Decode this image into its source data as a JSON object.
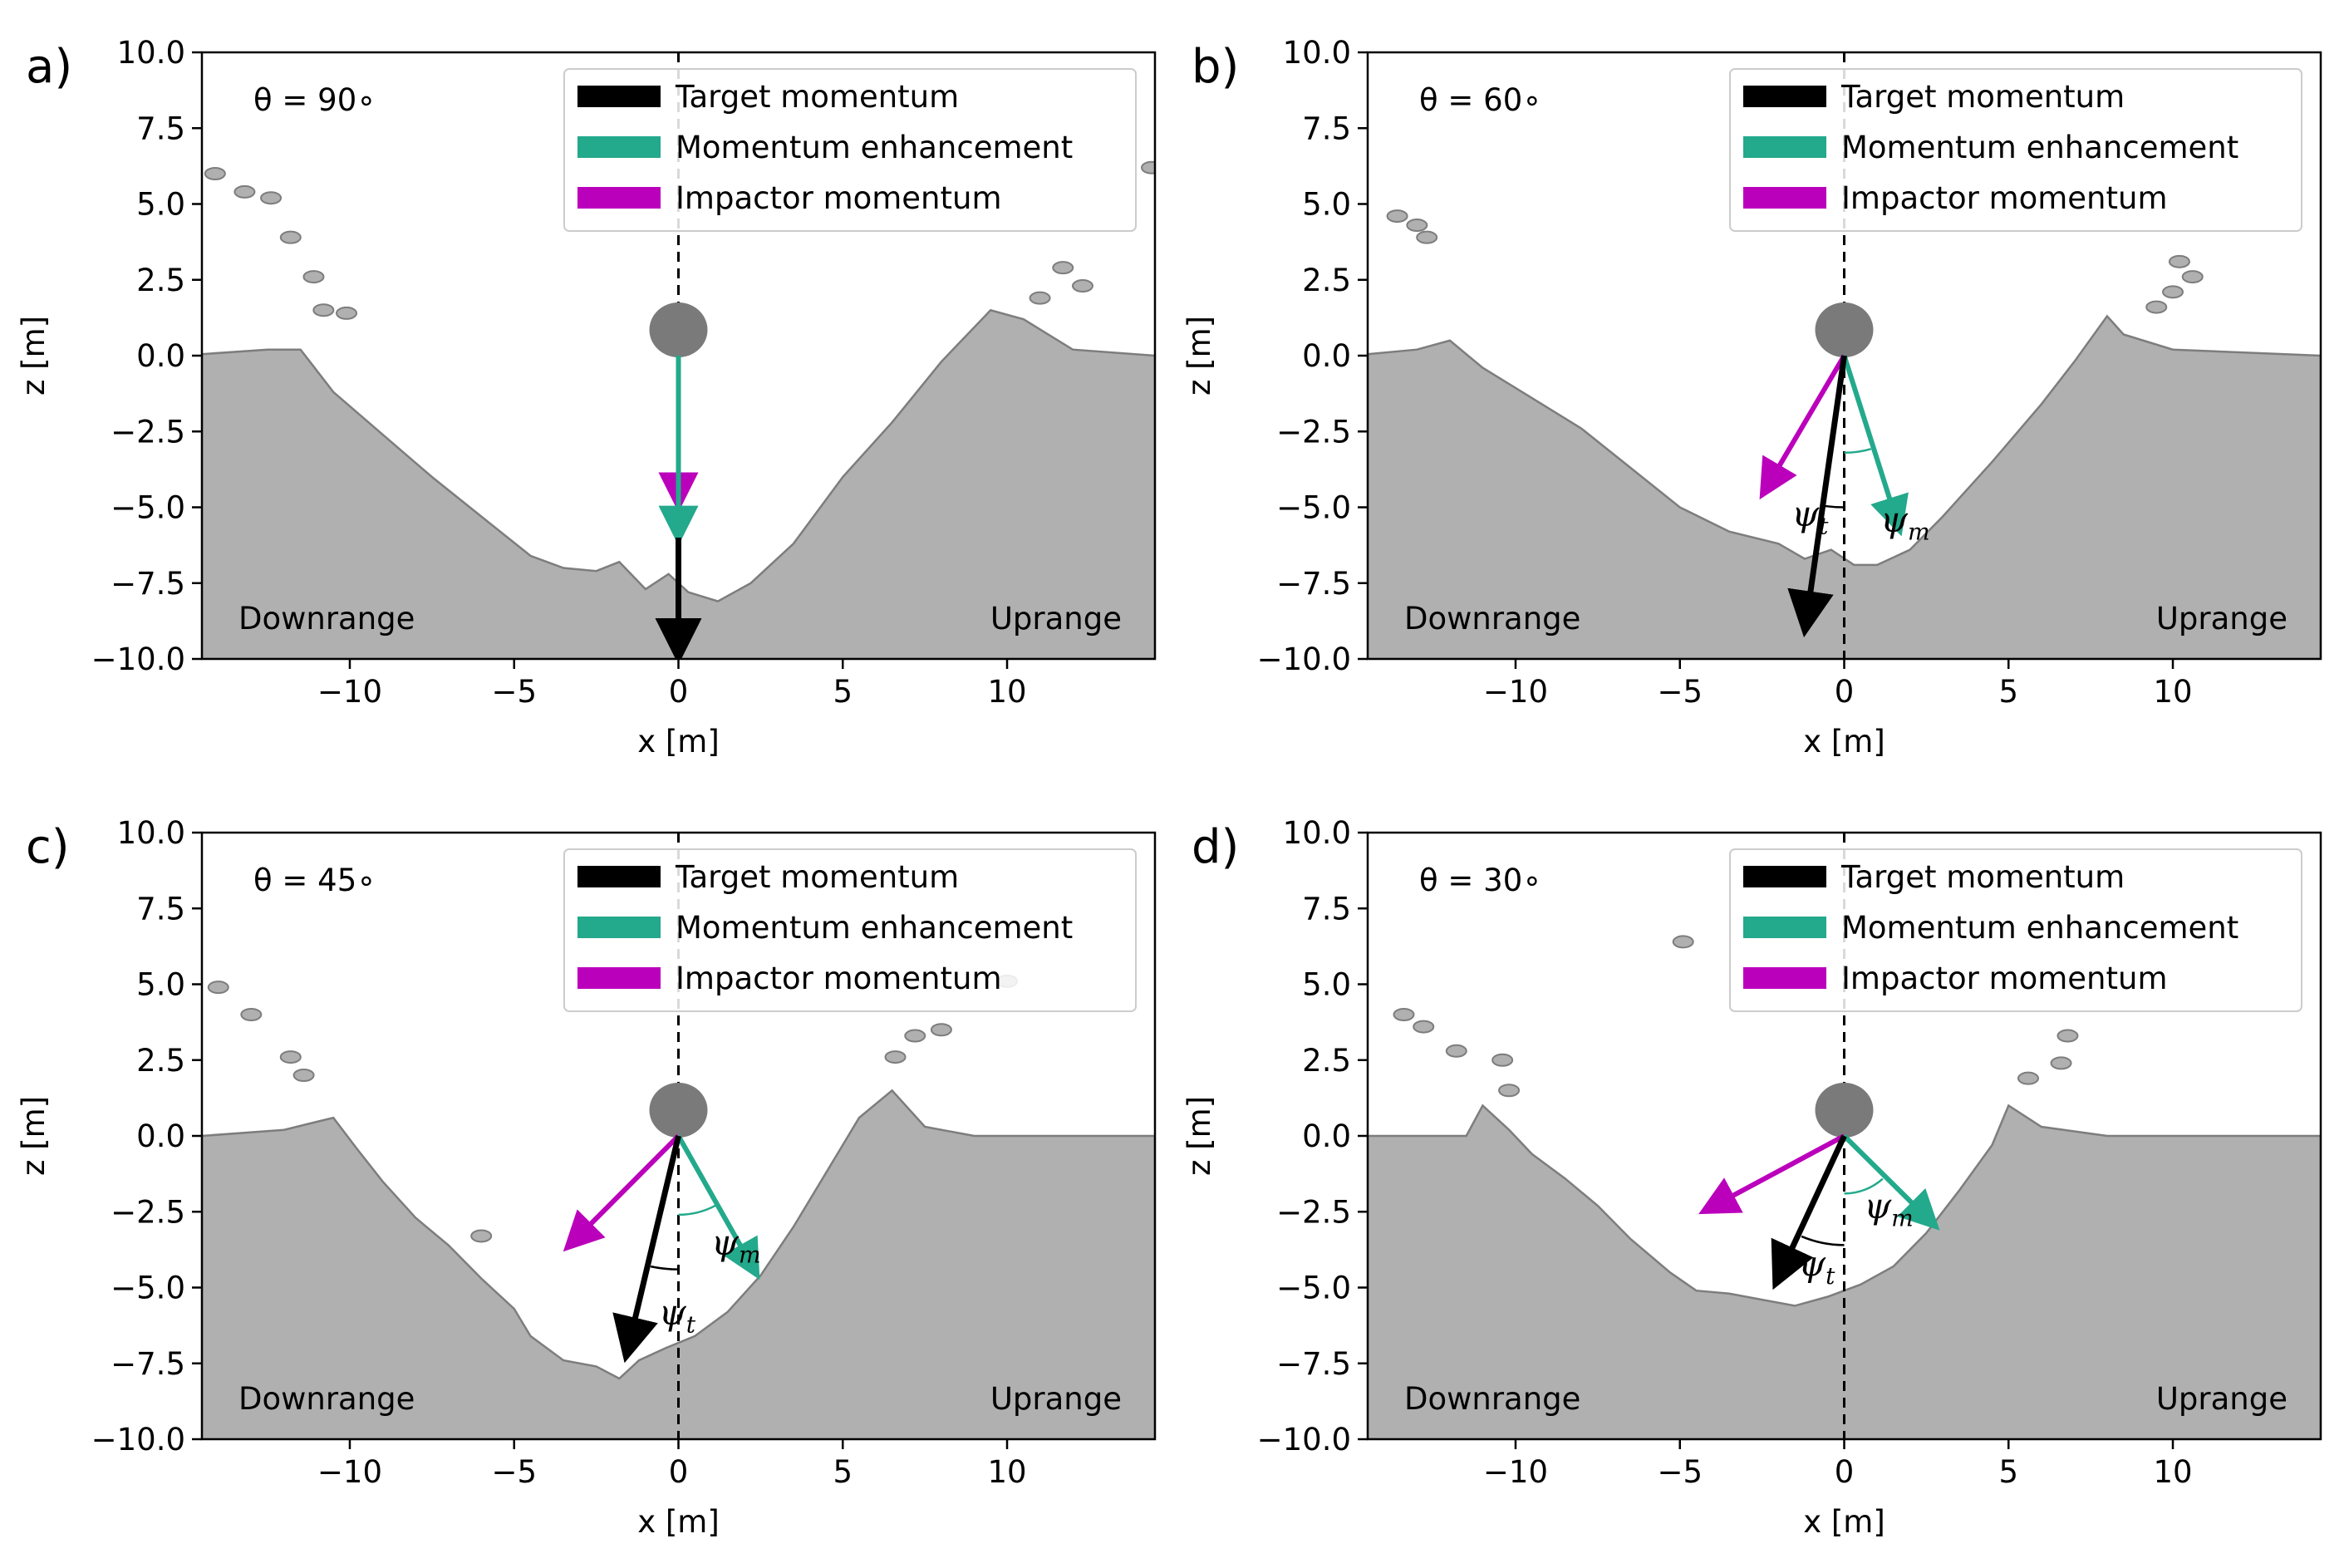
{
  "figure": {
    "background": "#ffffff"
  },
  "colors": {
    "target": "#000000",
    "enhancement": "#23a98b",
    "impactor": "#bb00bb",
    "terrain_fill": "#b0b0b0",
    "terrain_edge": "#7d7d7d",
    "impactor_ball": "#7a7a7a"
  },
  "chart_data": [
    {
      "panel_label": "a)",
      "type": "line",
      "title": "",
      "angle_label": "θ = 90∘",
      "angle_deg": 90,
      "xlabel": "x [m]",
      "ylabel": "z [m]",
      "xlim": [
        -14.5,
        14.5
      ],
      "ylim": [
        -10,
        10
      ],
      "xticks": [
        {
          "v": -10,
          "label": "−10"
        },
        {
          "v": -5,
          "label": "−5"
        },
        {
          "v": 0,
          "label": "0"
        },
        {
          "v": 5,
          "label": "5"
        },
        {
          "v": 10,
          "label": "10"
        }
      ],
      "yticks": [
        {
          "v": 10,
          "label": "10.0"
        },
        {
          "v": 7.5,
          "label": "7.5"
        },
        {
          "v": 5,
          "label": "5.0"
        },
        {
          "v": 2.5,
          "label": "2.5"
        },
        {
          "v": 0,
          "label": "0.0"
        },
        {
          "v": -2.5,
          "label": "−2.5"
        },
        {
          "v": -5,
          "label": "−5.0"
        },
        {
          "v": -7.5,
          "label": "−7.5"
        },
        {
          "v": -10,
          "label": "−10.0"
        }
      ],
      "legend": [
        "Target momentum",
        "Momentum enhancement",
        "Impactor momentum"
      ],
      "legend_position": "top-right",
      "downrange_label": "Downrange",
      "uprange_label": "Uprange",
      "impactor_center": [
        0,
        0.85
      ],
      "vectors": {
        "impactor": [
          [
            0,
            0
          ],
          [
            0,
            -5.0
          ]
        ],
        "enhancement": [
          [
            0,
            0
          ],
          [
            0,
            -6.1
          ]
        ],
        "target": [
          [
            0,
            -6.0
          ],
          [
            0,
            -10.0
          ]
        ]
      },
      "angle_marks": [],
      "crater_profile": [
        [
          -14.5,
          0.05
        ],
        [
          -12.5,
          0.2
        ],
        [
          -11.5,
          0.2
        ],
        [
          -10.5,
          -1.2
        ],
        [
          -9.0,
          -2.6
        ],
        [
          -7.5,
          -4.0
        ],
        [
          -6.0,
          -5.3
        ],
        [
          -4.5,
          -6.6
        ],
        [
          -3.5,
          -7.0
        ],
        [
          -2.5,
          -7.1
        ],
        [
          -1.8,
          -6.8
        ],
        [
          -1.0,
          -7.7
        ],
        [
          -0.3,
          -7.2
        ],
        [
          0.3,
          -7.8
        ],
        [
          1.2,
          -8.1
        ],
        [
          2.2,
          -7.5
        ],
        [
          3.5,
          -6.2
        ],
        [
          5.0,
          -4.0
        ],
        [
          6.5,
          -2.2
        ],
        [
          8.0,
          -0.2
        ],
        [
          9.5,
          1.5
        ],
        [
          10.5,
          1.2
        ],
        [
          12.0,
          0.2
        ],
        [
          14.5,
          0.0
        ]
      ],
      "debris": [
        [
          -14.1,
          6.0
        ],
        [
          -13.2,
          5.4
        ],
        [
          -12.4,
          5.2
        ],
        [
          -11.8,
          3.9
        ],
        [
          -11.1,
          2.6
        ],
        [
          -10.8,
          1.5
        ],
        [
          -10.1,
          1.4
        ],
        [
          11.0,
          1.9
        ],
        [
          11.7,
          2.9
        ],
        [
          12.3,
          2.3
        ],
        [
          14.4,
          6.2
        ]
      ]
    },
    {
      "panel_label": "b)",
      "type": "line",
      "title": "",
      "angle_label": "θ = 60∘",
      "angle_deg": 60,
      "xlabel": "x [m]",
      "ylabel": "z [m]",
      "xlim": [
        -14.5,
        14.5
      ],
      "ylim": [
        -10,
        10
      ],
      "xticks": [
        {
          "v": -10,
          "label": "−10"
        },
        {
          "v": -5,
          "label": "−5"
        },
        {
          "v": 0,
          "label": "0"
        },
        {
          "v": 5,
          "label": "5"
        },
        {
          "v": 10,
          "label": "10"
        }
      ],
      "yticks": [
        {
          "v": 10,
          "label": "10.0"
        },
        {
          "v": 7.5,
          "label": "7.5"
        },
        {
          "v": 5,
          "label": "5.0"
        },
        {
          "v": 2.5,
          "label": "2.5"
        },
        {
          "v": 0,
          "label": "0.0"
        },
        {
          "v": -2.5,
          "label": "−2.5"
        },
        {
          "v": -5,
          "label": "−5.0"
        },
        {
          "v": -7.5,
          "label": "−7.5"
        },
        {
          "v": -10,
          "label": "−10.0"
        }
      ],
      "legend": [
        "Target momentum",
        "Momentum enhancement",
        "Impactor momentum"
      ],
      "legend_position": "top-right",
      "downrange_label": "Downrange",
      "uprange_label": "Uprange",
      "impactor_center": [
        0,
        0.85
      ],
      "vectors": {
        "impactor": [
          [
            0,
            0
          ],
          [
            -2.5,
            -4.6
          ]
        ],
        "enhancement": [
          [
            0,
            0
          ],
          [
            1.7,
            -5.8
          ]
        ],
        "target": [
          [
            0,
            0
          ],
          [
            -1.2,
            -9.1
          ]
        ]
      },
      "angle_marks": [
        {
          "symbol": "ψt",
          "kind": "target",
          "label_at": [
            -1.6,
            -5.6
          ],
          "arc_center": [
            0,
            0
          ],
          "arc_radius": 5.0,
          "arc_from": -90,
          "arc_to": -97.5
        },
        {
          "symbol": "ψm",
          "kind": "enhancement",
          "label_at": [
            1.1,
            -5.8
          ],
          "arc_center": [
            0,
            0
          ],
          "arc_radius": 3.2,
          "arc_from": -90,
          "arc_to": -74
        }
      ],
      "crater_profile": [
        [
          -14.5,
          0.05
        ],
        [
          -13.0,
          0.2
        ],
        [
          -12.0,
          0.5
        ],
        [
          -11.0,
          -0.4
        ],
        [
          -9.5,
          -1.4
        ],
        [
          -8.0,
          -2.4
        ],
        [
          -6.5,
          -3.7
        ],
        [
          -5.0,
          -5.0
        ],
        [
          -3.5,
          -5.8
        ],
        [
          -2.0,
          -6.2
        ],
        [
          -1.2,
          -6.7
        ],
        [
          -0.4,
          -6.4
        ],
        [
          0.3,
          -6.9
        ],
        [
          1.0,
          -6.9
        ],
        [
          2.0,
          -6.4
        ],
        [
          3.0,
          -5.3
        ],
        [
          4.5,
          -3.5
        ],
        [
          6.0,
          -1.6
        ],
        [
          7.0,
          -0.2
        ],
        [
          8.0,
          1.3
        ],
        [
          8.5,
          0.7
        ],
        [
          10.0,
          0.2
        ],
        [
          14.5,
          0.0
        ]
      ],
      "debris": [
        [
          -13.6,
          4.6
        ],
        [
          -13.0,
          4.3
        ],
        [
          -12.7,
          3.9
        ],
        [
          9.5,
          1.6
        ],
        [
          10.0,
          2.1
        ],
        [
          10.6,
          2.6
        ],
        [
          10.2,
          3.1
        ]
      ]
    },
    {
      "panel_label": "c)",
      "type": "line",
      "title": "",
      "angle_label": "θ = 45∘",
      "angle_deg": 45,
      "xlabel": "x [m]",
      "ylabel": "z [m]",
      "xlim": [
        -14.5,
        14.5
      ],
      "ylim": [
        -10,
        10
      ],
      "xticks": [
        {
          "v": -10,
          "label": "−10"
        },
        {
          "v": -5,
          "label": "−5"
        },
        {
          "v": 0,
          "label": "0"
        },
        {
          "v": 5,
          "label": "5"
        },
        {
          "v": 10,
          "label": "10"
        }
      ],
      "yticks": [
        {
          "v": 10,
          "label": "10.0"
        },
        {
          "v": 7.5,
          "label": "7.5"
        },
        {
          "v": 5,
          "label": "5.0"
        },
        {
          "v": 2.5,
          "label": "2.5"
        },
        {
          "v": 0,
          "label": "0.0"
        },
        {
          "v": -2.5,
          "label": "−2.5"
        },
        {
          "v": -5,
          "label": "−5.0"
        },
        {
          "v": -7.5,
          "label": "−7.5"
        },
        {
          "v": -10,
          "label": "−10.0"
        }
      ],
      "legend": [
        "Target momentum",
        "Momentum enhancement",
        "Impactor momentum"
      ],
      "legend_position": "top-right",
      "downrange_label": "Downrange",
      "uprange_label": "Uprange",
      "impactor_center": [
        0,
        0.85
      ],
      "vectors": {
        "impactor": [
          [
            0,
            0
          ],
          [
            -3.4,
            -3.7
          ]
        ],
        "enhancement": [
          [
            0,
            0
          ],
          [
            2.4,
            -4.6
          ]
        ],
        "target": [
          [
            0,
            0
          ],
          [
            -1.6,
            -7.3
          ]
        ]
      },
      "angle_marks": [
        {
          "symbol": "ψm",
          "kind": "enhancement",
          "label_at": [
            1.0,
            -3.9
          ],
          "arc_center": [
            0,
            0
          ],
          "arc_radius": 2.6,
          "arc_from": -90,
          "arc_to": -62
        },
        {
          "symbol": "ψt",
          "kind": "target",
          "label_at": [
            -0.6,
            -6.2
          ],
          "arc_center": [
            0,
            0
          ],
          "arc_radius": 4.4,
          "arc_from": -90,
          "arc_to": -102
        }
      ],
      "crater_profile": [
        [
          -14.5,
          0.0
        ],
        [
          -12.0,
          0.2
        ],
        [
          -10.5,
          0.6
        ],
        [
          -9.8,
          -0.4
        ],
        [
          -9.0,
          -1.5
        ],
        [
          -8.0,
          -2.7
        ],
        [
          -7.0,
          -3.6
        ],
        [
          -6.0,
          -4.7
        ],
        [
          -5.0,
          -5.7
        ],
        [
          -4.5,
          -6.6
        ],
        [
          -3.5,
          -7.4
        ],
        [
          -2.5,
          -7.6
        ],
        [
          -1.8,
          -8.0
        ],
        [
          -1.2,
          -7.4
        ],
        [
          -0.4,
          -7.0
        ],
        [
          0.5,
          -6.6
        ],
        [
          1.5,
          -5.8
        ],
        [
          2.5,
          -4.6
        ],
        [
          3.5,
          -3.0
        ],
        [
          4.5,
          -1.2
        ],
        [
          5.5,
          0.6
        ],
        [
          6.5,
          1.5
        ],
        [
          7.5,
          0.3
        ],
        [
          9.0,
          0.0
        ],
        [
          14.5,
          0.0
        ]
      ],
      "debris": [
        [
          -14.0,
          4.9
        ],
        [
          -13.0,
          4.0
        ],
        [
          -11.8,
          2.6
        ],
        [
          -11.4,
          2.0
        ],
        [
          -6.0,
          -3.3
        ],
        [
          6.6,
          2.6
        ],
        [
          7.2,
          3.3
        ],
        [
          8.0,
          3.5
        ],
        [
          10.0,
          5.1
        ]
      ]
    },
    {
      "panel_label": "d)",
      "type": "line",
      "title": "",
      "angle_label": "θ = 30∘",
      "angle_deg": 30,
      "xlabel": "x [m]",
      "ylabel": "z [m]",
      "xlim": [
        -14.5,
        14.5
      ],
      "ylim": [
        -10,
        10
      ],
      "xticks": [
        {
          "v": -10,
          "label": "−10"
        },
        {
          "v": -5,
          "label": "−5"
        },
        {
          "v": 0,
          "label": "0"
        },
        {
          "v": 5,
          "label": "5"
        },
        {
          "v": 10,
          "label": "10"
        }
      ],
      "yticks": [
        {
          "v": 10,
          "label": "10.0"
        },
        {
          "v": 7.5,
          "label": "7.5"
        },
        {
          "v": 5,
          "label": "5.0"
        },
        {
          "v": 2.5,
          "label": "2.5"
        },
        {
          "v": 0,
          "label": "0.0"
        },
        {
          "v": -2.5,
          "label": "−2.5"
        },
        {
          "v": -5,
          "label": "−5.0"
        },
        {
          "v": -7.5,
          "label": "−7.5"
        },
        {
          "v": -10,
          "label": "−10.0"
        }
      ],
      "legend": [
        "Target momentum",
        "Momentum enhancement",
        "Impactor momentum"
      ],
      "legend_position": "top-right",
      "downrange_label": "Downrange",
      "uprange_label": "Uprange",
      "impactor_center": [
        0,
        0.85
      ],
      "vectors": {
        "impactor": [
          [
            0,
            0
          ],
          [
            -4.3,
            -2.5
          ]
        ],
        "enhancement": [
          [
            0,
            0
          ],
          [
            2.8,
            -3.0
          ]
        ],
        "target": [
          [
            0,
            0
          ],
          [
            -2.1,
            -4.9
          ]
        ]
      },
      "angle_marks": [
        {
          "symbol": "ψm",
          "kind": "enhancement",
          "label_at": [
            0.6,
            -2.7
          ],
          "arc_center": [
            0,
            0
          ],
          "arc_radius": 1.9,
          "arc_from": -90,
          "arc_to": -48
        },
        {
          "symbol": "ψt",
          "kind": "target",
          "label_at": [
            -1.4,
            -4.6
          ],
          "arc_center": [
            0,
            0
          ],
          "arc_radius": 3.6,
          "arc_from": -90,
          "arc_to": -113
        }
      ],
      "crater_profile": [
        [
          -14.5,
          0.0
        ],
        [
          -11.5,
          0.0
        ],
        [
          -11.0,
          1.0
        ],
        [
          -10.2,
          0.2
        ],
        [
          -9.5,
          -0.6
        ],
        [
          -8.5,
          -1.4
        ],
        [
          -7.5,
          -2.3
        ],
        [
          -6.5,
          -3.4
        ],
        [
          -5.3,
          -4.5
        ],
        [
          -4.5,
          -5.1
        ],
        [
          -3.5,
          -5.2
        ],
        [
          -2.5,
          -5.4
        ],
        [
          -1.5,
          -5.6
        ],
        [
          -0.5,
          -5.3
        ],
        [
          0.5,
          -4.9
        ],
        [
          1.5,
          -4.3
        ],
        [
          2.5,
          -3.2
        ],
        [
          3.5,
          -1.8
        ],
        [
          4.5,
          -0.3
        ],
        [
          5.0,
          1.0
        ],
        [
          6.0,
          0.3
        ],
        [
          8.0,
          0.0
        ],
        [
          14.5,
          0.0
        ]
      ],
      "debris": [
        [
          -13.4,
          4.0
        ],
        [
          -12.8,
          3.6
        ],
        [
          -11.8,
          2.8
        ],
        [
          -10.4,
          2.5
        ],
        [
          -10.2,
          1.5
        ],
        [
          -4.9,
          6.4
        ],
        [
          5.6,
          1.9
        ],
        [
          6.6,
          2.4
        ],
        [
          6.8,
          3.3
        ]
      ]
    }
  ]
}
